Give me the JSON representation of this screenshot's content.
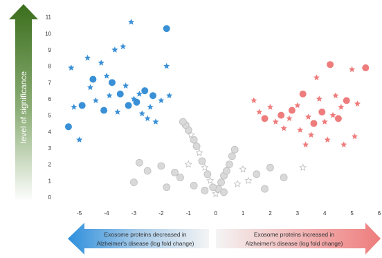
{
  "chart_data": {
    "type": "scatter",
    "title": "",
    "ylabel": "level of significance",
    "xlabel_left": [
      "Exosome proteins decreased in",
      "Alzheimer's disease (log fold change)"
    ],
    "xlabel_right": [
      "Exosome proteins increased in",
      "Alzheimer's disease (log fold change)"
    ],
    "xlim": [
      -5.5,
      6
    ],
    "ylim": [
      -0.3,
      11.2
    ],
    "x_ticks": [
      -5,
      -4,
      -3,
      -2,
      -1,
      0,
      1,
      2,
      3,
      4,
      5,
      6
    ],
    "y_ticks": [
      0,
      1,
      2,
      3,
      4,
      5,
      6,
      7,
      8,
      9,
      10,
      11
    ],
    "grid": false,
    "colors": {
      "decreased": "#3a90d6",
      "increased": "#ee7c7c",
      "not_significant": "#d9d9d9",
      "arrow_top": "#3a6e1c",
      "arrow_bottom": "#ffffff",
      "left_banner": "#2e8fdc",
      "right_banner": "#ee7c7c"
    },
    "series": [
      {
        "group": "decreased",
        "points": [
          [
            -5.3,
            7.9
          ],
          [
            -5.2,
            5.5
          ],
          [
            -4.9,
            5.6
          ],
          [
            -4.7,
            8.5
          ],
          [
            -4.6,
            6.7
          ],
          [
            -4.5,
            7.2
          ],
          [
            -4.4,
            5.9
          ],
          [
            -4.2,
            8.2
          ],
          [
            -4.1,
            5.3
          ],
          [
            -4.0,
            7.4
          ],
          [
            -3.9,
            6.2
          ],
          [
            -3.8,
            7.0
          ],
          [
            -3.7,
            9.0
          ],
          [
            -3.6,
            5.2
          ],
          [
            -3.5,
            6.3
          ],
          [
            -3.4,
            9.2
          ],
          [
            -3.3,
            6.8
          ],
          [
            -3.2,
            5.6
          ],
          [
            -3.1,
            10.7
          ],
          [
            -3.0,
            6.0
          ],
          [
            -2.9,
            5.8
          ],
          [
            -2.8,
            6.3
          ],
          [
            -2.7,
            5.1
          ],
          [
            -2.6,
            6.5
          ],
          [
            -2.5,
            4.8
          ],
          [
            -2.4,
            5.5
          ],
          [
            -2.3,
            6.2
          ],
          [
            -2.2,
            4.6
          ],
          [
            -2.0,
            5.9
          ],
          [
            -1.8,
            10.3
          ],
          [
            -1.8,
            8.0
          ],
          [
            -1.7,
            6.2
          ],
          [
            -5.4,
            4.3
          ],
          [
            -5.0,
            3.5
          ]
        ]
      },
      {
        "group": "increased",
        "points": [
          [
            1.4,
            5.9
          ],
          [
            1.6,
            5.2
          ],
          [
            1.8,
            4.8
          ],
          [
            2.0,
            5.5
          ],
          [
            2.2,
            4.6
          ],
          [
            2.4,
            5.0
          ],
          [
            2.5,
            4.2
          ],
          [
            2.7,
            4.8
          ],
          [
            2.8,
            5.3
          ],
          [
            3.0,
            5.6
          ],
          [
            3.1,
            4.1
          ],
          [
            3.2,
            6.3
          ],
          [
            3.4,
            4.9
          ],
          [
            3.5,
            3.8
          ],
          [
            3.6,
            4.5
          ],
          [
            3.7,
            7.3
          ],
          [
            3.8,
            6.0
          ],
          [
            3.9,
            5.2
          ],
          [
            4.0,
            4.6
          ],
          [
            4.1,
            3.5
          ],
          [
            4.2,
            8.1
          ],
          [
            4.3,
            5.0
          ],
          [
            4.4,
            6.2
          ],
          [
            4.5,
            4.8
          ],
          [
            4.6,
            5.5
          ],
          [
            4.7,
            3.2
          ],
          [
            4.8,
            5.9
          ],
          [
            5.0,
            7.8
          ],
          [
            5.1,
            3.7
          ],
          [
            5.5,
            7.9
          ],
          [
            5.2,
            5.7
          ],
          [
            3.3,
            3.2
          ]
        ]
      },
      {
        "group": "not_significant",
        "points": [
          [
            0.0,
            0.2
          ],
          [
            0.1,
            0.5
          ],
          [
            -0.1,
            0.6
          ],
          [
            0.2,
            0.9
          ],
          [
            -0.2,
            1.0
          ],
          [
            0.3,
            1.3
          ],
          [
            -0.3,
            1.4
          ],
          [
            0.4,
            1.6
          ],
          [
            -0.4,
            1.8
          ],
          [
            0.5,
            2.0
          ],
          [
            -0.5,
            2.2
          ],
          [
            0.6,
            2.5
          ],
          [
            -0.6,
            2.7
          ],
          [
            0.7,
            2.9
          ],
          [
            -0.7,
            3.1
          ],
          [
            -0.8,
            3.5
          ],
          [
            -0.9,
            3.8
          ],
          [
            -1.0,
            4.1
          ],
          [
            -1.1,
            4.4
          ],
          [
            -1.2,
            4.6
          ],
          [
            -1.0,
            2.0
          ],
          [
            -1.5,
            1.5
          ],
          [
            -2.0,
            1.9
          ],
          [
            -2.5,
            1.6
          ],
          [
            1.0,
            1.7
          ],
          [
            1.5,
            1.4
          ],
          [
            2.0,
            1.8
          ],
          [
            2.5,
            1.2
          ],
          [
            0.8,
            0.8
          ],
          [
            -0.8,
            0.7
          ],
          [
            -2.8,
            2.1
          ],
          [
            -3.0,
            0.9
          ],
          [
            3.2,
            1.8
          ],
          [
            -1.8,
            0.6
          ],
          [
            1.8,
            0.5
          ],
          [
            -1.3,
            1.2
          ],
          [
            1.2,
            1.0
          ],
          [
            0.3,
            0.3
          ],
          [
            -0.4,
            0.4
          ]
        ]
      }
    ]
  }
}
